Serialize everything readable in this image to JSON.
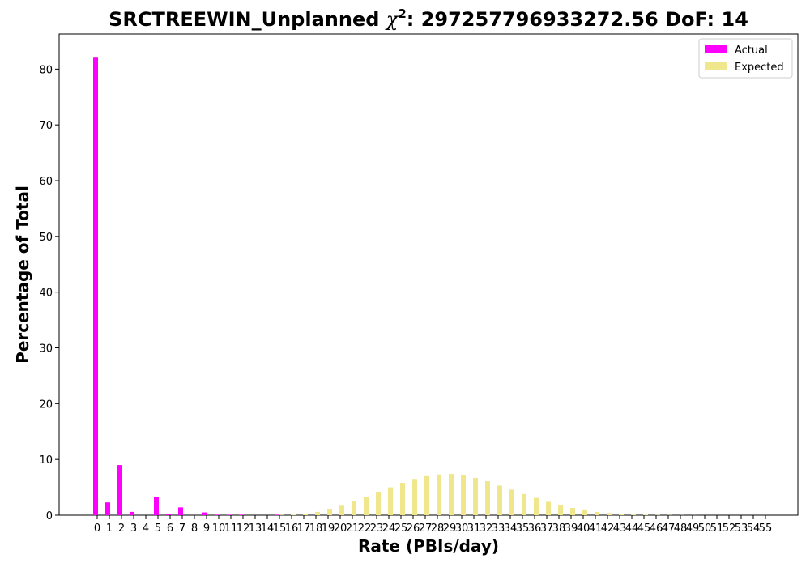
{
  "chart_data": {
    "type": "bar",
    "title_prefix": "SRCTREEWIN_Unplanned ",
    "title_chi": "χ",
    "title_sup": "2",
    "title_suffix": ": 297257796933272.56 DoF: 14",
    "xlabel": "Rate (PBIs/day)",
    "ylabel": "Percentage of Total",
    "ylim": [
      0,
      86.3
    ],
    "yticks": [
      0,
      10,
      20,
      30,
      40,
      50,
      60,
      70,
      80
    ],
    "legend_position": "top-right",
    "categories": [
      "0",
      "1",
      "2",
      "3",
      "4",
      "5",
      "6",
      "7",
      "8",
      "9",
      "10",
      "11",
      "12",
      "13",
      "14",
      "15",
      "16",
      "17",
      "18",
      "19",
      "20",
      "21",
      "22",
      "23",
      "24",
      "25",
      "26",
      "27",
      "28",
      "29",
      "30",
      "31",
      "32",
      "33",
      "34",
      "35",
      "36",
      "37",
      "38",
      "39",
      "40",
      "41",
      "42",
      "43",
      "44",
      "45",
      "46",
      "47",
      "48",
      "49",
      "50",
      "51",
      "52",
      "53",
      "54",
      "55"
    ],
    "series": [
      {
        "name": "Actual",
        "color": "#ff00ff",
        "values": [
          82.2,
          2.3,
          9.0,
          0.6,
          0,
          3.3,
          0.15,
          1.4,
          0,
          0.5,
          0.1,
          0.1,
          0.1,
          0,
          0,
          0.1,
          0,
          0,
          0,
          0,
          0,
          0,
          0,
          0,
          0,
          0,
          0,
          0,
          0,
          0,
          0,
          0,
          0,
          0,
          0,
          0,
          0,
          0,
          0,
          0,
          0,
          0,
          0,
          0,
          0,
          0,
          0,
          0,
          0,
          0,
          0,
          0,
          0,
          0,
          0,
          0
        ]
      },
      {
        "name": "Expected",
        "color": "#f0e68c",
        "values": [
          0,
          0,
          0,
          0,
          0,
          0,
          0,
          0,
          0,
          0,
          0,
          0,
          0,
          0,
          0,
          0.05,
          0.1,
          0.3,
          0.6,
          1.1,
          1.7,
          2.5,
          3.3,
          4.2,
          5.0,
          5.8,
          6.5,
          7.0,
          7.3,
          7.4,
          7.2,
          6.7,
          6.1,
          5.3,
          4.6,
          3.8,
          3.1,
          2.4,
          1.8,
          1.3,
          0.9,
          0.6,
          0.4,
          0.25,
          0.15,
          0.1,
          0.05,
          0.03,
          0.02,
          0.01,
          0,
          0,
          0,
          0,
          0,
          0
        ]
      }
    ]
  }
}
